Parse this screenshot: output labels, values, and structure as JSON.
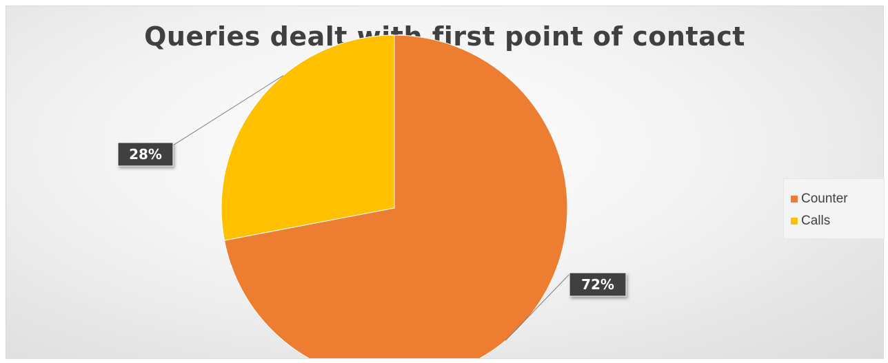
{
  "chart_data": {
    "type": "pie",
    "title": "Queries dealt with first point of contact",
    "slices": [
      {
        "name": "Counter",
        "value": 72,
        "label": "72%",
        "color": "#ED7D31"
      },
      {
        "name": "Calls",
        "value": 28,
        "label": "28%",
        "color": "#FFC000"
      }
    ],
    "legend_position": "right",
    "label_style": "dark callout boxes with leader lines"
  }
}
